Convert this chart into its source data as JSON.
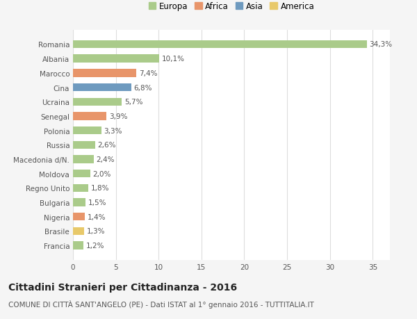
{
  "categories": [
    "Francia",
    "Brasile",
    "Nigeria",
    "Bulgaria",
    "Regno Unito",
    "Moldova",
    "Macedonia d/N.",
    "Russia",
    "Polonia",
    "Senegal",
    "Ucraina",
    "Cina",
    "Marocco",
    "Albania",
    "Romania"
  ],
  "values": [
    1.2,
    1.3,
    1.4,
    1.5,
    1.8,
    2.0,
    2.4,
    2.6,
    3.3,
    3.9,
    5.7,
    6.8,
    7.4,
    10.1,
    34.3
  ],
  "colors": [
    "#aacb8a",
    "#e8c96a",
    "#e8956a",
    "#aacb8a",
    "#aacb8a",
    "#aacb8a",
    "#aacb8a",
    "#aacb8a",
    "#aacb8a",
    "#e8956a",
    "#aacb8a",
    "#6e9abf",
    "#e8956a",
    "#aacb8a",
    "#aacb8a"
  ],
  "labels": [
    "1,2%",
    "1,3%",
    "1,4%",
    "1,5%",
    "1,8%",
    "2,0%",
    "2,4%",
    "2,6%",
    "3,3%",
    "3,9%",
    "5,7%",
    "6,8%",
    "7,4%",
    "10,1%",
    "34,3%"
  ],
  "legend_labels": [
    "Europa",
    "Africa",
    "Asia",
    "America"
  ],
  "legend_colors": [
    "#aacb8a",
    "#e8956a",
    "#6e9abf",
    "#e8c96a"
  ],
  "xlim": [
    0,
    37
  ],
  "xticks": [
    0,
    5,
    10,
    15,
    20,
    25,
    30,
    35
  ],
  "title": "Cittadini Stranieri per Cittadinanza - 2016",
  "subtitle": "COMUNE DI CITTÀ SANT'ANGELO (PE) - Dati ISTAT al 1° gennaio 2016 - TUTTITALIA.IT",
  "bg_color": "#f5f5f5",
  "plot_bg_color": "#ffffff",
  "grid_color": "#dddddd",
  "title_fontsize": 10,
  "subtitle_fontsize": 7.5,
  "label_fontsize": 7.5,
  "tick_fontsize": 7.5,
  "legend_fontsize": 8.5,
  "bar_height": 0.55
}
